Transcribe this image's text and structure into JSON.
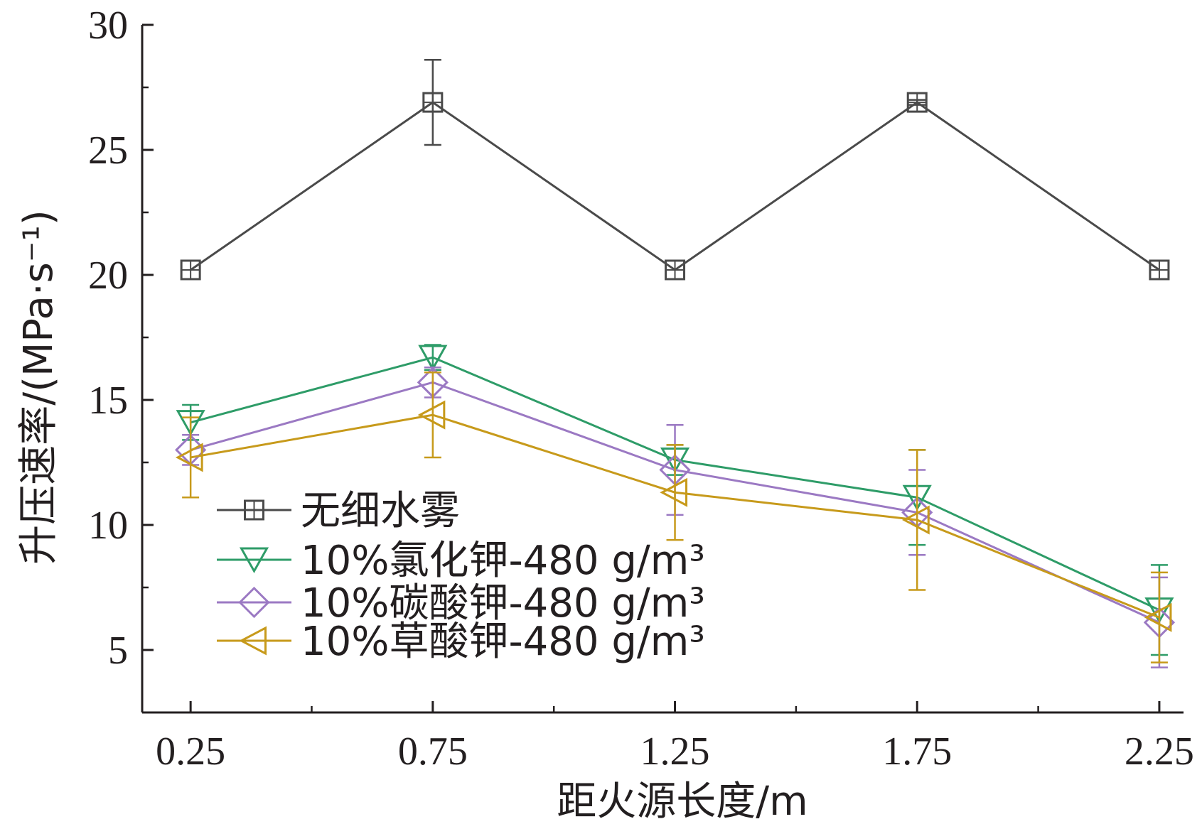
{
  "chart_data": {
    "type": "line",
    "xlabel": "距火源长度/m",
    "ylabel": "升压速率/(MPa·s⁻¹)",
    "x": [
      0.25,
      0.75,
      1.25,
      1.75,
      2.25
    ],
    "xlim": [
      0.15,
      2.3
    ],
    "ylim": [
      2.5,
      30
    ],
    "yticks": [
      5,
      10,
      15,
      20,
      25,
      30
    ],
    "xticks": [
      0.25,
      0.75,
      1.25,
      1.75,
      2.25
    ],
    "ytick_labels": [
      "5",
      "10",
      "15",
      "20",
      "25",
      "30"
    ],
    "xtick_labels": [
      "0.25",
      "0.75",
      "1.25",
      "1.75",
      "2.25"
    ],
    "grid": false,
    "legend_position": "lower-left",
    "series": [
      {
        "name": "无细水雾",
        "marker": "square",
        "color": "#4a4a4a",
        "values": [
          20.2,
          26.9,
          20.2,
          26.9,
          20.2
        ],
        "errors": [
          0.0,
          1.7,
          0.0,
          0.1,
          0.0
        ]
      },
      {
        "name": "10%氯化钾-480 g/m³",
        "marker": "triangle-down",
        "color": "#2e9c68",
        "values": [
          14.1,
          16.7,
          12.6,
          11.1,
          6.6
        ],
        "errors": [
          0.7,
          0.5,
          0.6,
          1.9,
          1.8
        ]
      },
      {
        "name": "10%碳酸钾-480 g/m³",
        "marker": "diamond",
        "color": "#9b79c3",
        "values": [
          13.0,
          15.7,
          12.2,
          10.5,
          6.1
        ],
        "errors": [
          0.6,
          0.6,
          1.8,
          1.7,
          1.8
        ]
      },
      {
        "name": "10%草酸钾-480 g/m³",
        "marker": "triangle-left",
        "color": "#c79a1b",
        "values": [
          12.7,
          14.4,
          11.3,
          10.2,
          6.3
        ],
        "errors": [
          1.6,
          1.7,
          1.9,
          2.8,
          1.8
        ]
      }
    ]
  }
}
